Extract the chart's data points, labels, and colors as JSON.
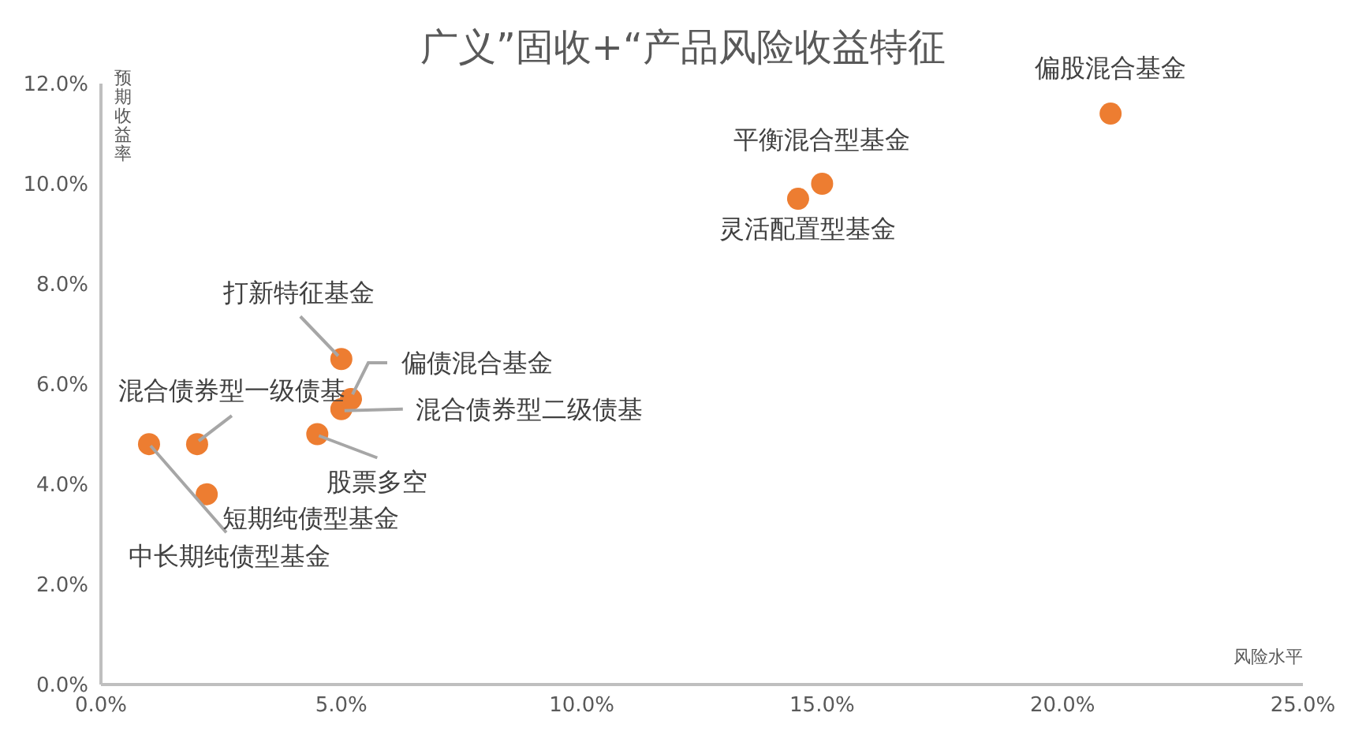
{
  "chart_data": {
    "type": "scatter",
    "title": "广义”固收+“产品风险收益特征",
    "xlabel": "风险水平",
    "ylabel": "预期收益率",
    "x": [
      1.0,
      2.0,
      2.2,
      4.5,
      5.0,
      5.2,
      5.0,
      14.5,
      15.0,
      21.0
    ],
    "series": [
      {
        "color": "#ed7d31",
        "values": [
          4.8,
          4.8,
          3.8,
          5.0,
          5.5,
          5.7,
          6.5,
          9.7,
          10.0,
          11.4
        ]
      }
    ],
    "annotations": [
      {
        "text": "中长期纯债型基金",
        "x": 1.0,
        "y": 4.8
      },
      {
        "text": "混合债券型一级债基",
        "x": 2.0,
        "y": 4.8
      },
      {
        "text": "短期纯债型基金",
        "x": 2.2,
        "y": 3.8
      },
      {
        "text": "股票多空",
        "x": 4.5,
        "y": 5.0
      },
      {
        "text": "混合债券型二级债基",
        "x": 5.0,
        "y": 5.5
      },
      {
        "text": "偏债混合基金",
        "x": 5.2,
        "y": 5.7
      },
      {
        "text": "打新特征基金",
        "x": 5.0,
        "y": 6.5
      },
      {
        "text": "灵活配置型基金",
        "x": 14.5,
        "y": 9.7
      },
      {
        "text": "平衡混合型基金",
        "x": 15.0,
        "y": 10.0
      },
      {
        "text": "偏股混合基金",
        "x": 21.0,
        "y": 11.4
      }
    ],
    "xlim": [
      0,
      25
    ],
    "xticks": [
      {
        "value": 0,
        "label": "0.0%"
      },
      {
        "value": 5,
        "label": "5.0%"
      },
      {
        "value": 10,
        "label": "10.0%"
      },
      {
        "value": 15,
        "label": "15.0%"
      },
      {
        "value": 20,
        "label": "20.0%"
      },
      {
        "value": 25,
        "label": "25.0%"
      }
    ],
    "ylim": [
      0,
      12
    ],
    "yticks": [
      {
        "value": 0,
        "label": "0.0%"
      },
      {
        "value": 2,
        "label": "2.0%"
      },
      {
        "value": 4,
        "label": "4.0%"
      },
      {
        "value": 6,
        "label": "6.0%"
      },
      {
        "value": 8,
        "label": "8.0%"
      },
      {
        "value": 10,
        "label": "10.0%"
      },
      {
        "value": 12,
        "label": "12.0%"
      }
    ],
    "grid": false,
    "legend": false,
    "marker": "circle"
  }
}
